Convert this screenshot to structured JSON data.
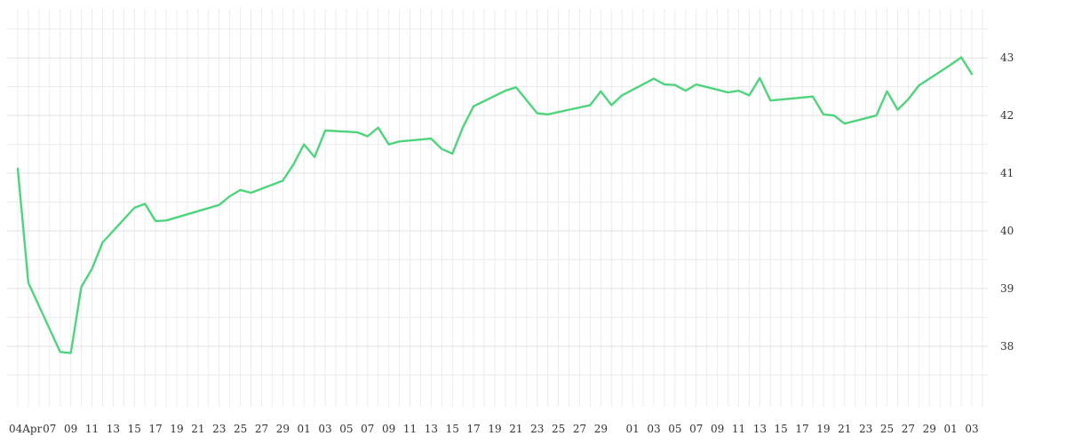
{
  "chart_data": {
    "type": "line",
    "title": "",
    "xlabel": "",
    "ylabel": "",
    "ylim": [
      36.95,
      43.85
    ],
    "grid": true,
    "legend": "none",
    "y_axis_side": "right",
    "y_ticks": [
      "38",
      "39",
      "40",
      "41",
      "42",
      "43"
    ],
    "x_tick_labels": [
      "04Apr",
      "07",
      "09",
      "11",
      "13",
      "15",
      "17",
      "19",
      "21",
      "23",
      "25",
      "27",
      "29",
      "01",
      "03",
      "05",
      "07",
      "09",
      "11",
      "13",
      "15",
      "17",
      "19",
      "21",
      "23",
      "25",
      "27",
      "29",
      "01",
      "03",
      "05",
      "07",
      "09",
      "11",
      "13",
      "15",
      "17",
      "19",
      "21",
      "23",
      "25",
      "27",
      "29",
      "01",
      "03"
    ],
    "series": [
      {
        "color": "#4fd47e",
        "x": [
          "2024-04-04",
          "2024-04-05",
          "2024-04-08",
          "2024-04-09",
          "2024-04-10",
          "2024-04-11",
          "2024-04-12",
          "2024-04-15",
          "2024-04-16",
          "2024-04-17",
          "2024-04-18",
          "2024-04-23",
          "2024-04-24",
          "2024-04-25",
          "2024-04-26",
          "2024-04-29",
          "2024-04-30",
          "2024-05-01",
          "2024-05-02",
          "2024-05-03",
          "2024-05-06",
          "2024-05-07",
          "2024-05-08",
          "2024-05-09",
          "2024-05-10",
          "2024-05-13",
          "2024-05-14",
          "2024-05-15",
          "2024-05-16",
          "2024-05-17",
          "2024-05-20",
          "2024-05-21",
          "2024-05-23",
          "2024-05-24",
          "2024-05-28",
          "2024-05-29",
          "2024-05-30",
          "2024-05-31",
          "2024-06-03",
          "2024-06-04",
          "2024-06-05",
          "2024-06-06",
          "2024-06-07",
          "2024-06-10",
          "2024-06-11",
          "2024-06-12",
          "2024-06-13",
          "2024-06-14",
          "2024-06-18",
          "2024-06-19",
          "2024-06-20",
          "2024-06-21",
          "2024-06-24",
          "2024-06-25",
          "2024-06-26",
          "2024-06-27",
          "2024-06-28",
          "2024-07-01",
          "2024-07-02",
          "2024-07-03"
        ],
        "y": [
          41.08,
          39.1,
          37.9,
          37.88,
          39.03,
          39.34,
          39.8,
          40.4,
          40.47,
          40.17,
          40.18,
          40.45,
          40.6,
          40.71,
          40.66,
          40.87,
          41.15,
          41.5,
          41.28,
          41.74,
          41.71,
          41.64,
          41.79,
          41.5,
          41.55,
          41.6,
          41.42,
          41.34,
          41.8,
          42.16,
          42.43,
          42.49,
          42.04,
          42.02,
          42.18,
          42.42,
          42.18,
          42.35,
          42.64,
          42.54,
          42.53,
          42.43,
          42.54,
          42.4,
          42.43,
          42.35,
          42.65,
          42.26,
          42.33,
          42.02,
          42.0,
          41.86,
          42.0,
          42.42,
          42.1,
          42.28,
          42.52,
          42.88,
          43.01,
          42.72
        ]
      }
    ]
  }
}
